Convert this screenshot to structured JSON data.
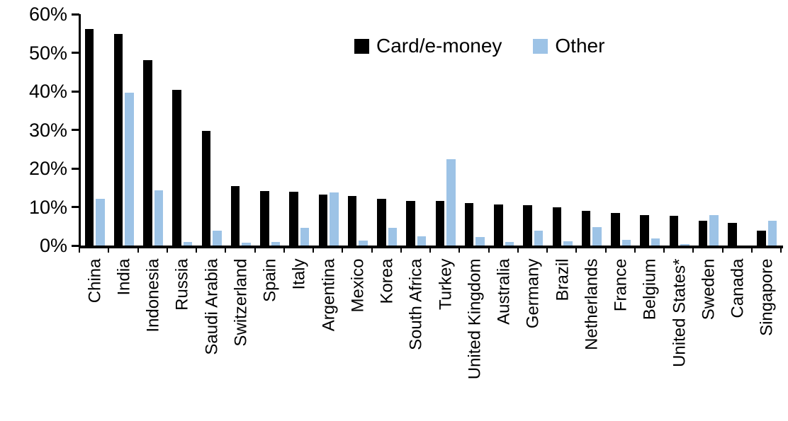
{
  "chart_data": {
    "type": "bar",
    "title": "",
    "xlabel": "",
    "ylabel": "",
    "ylim": [
      0,
      60
    ],
    "y_tick_labels": [
      "0%",
      "10%",
      "20%",
      "30%",
      "40%",
      "50%",
      "60%"
    ],
    "grid": false,
    "legend_position": "top-center",
    "categories": [
      "China",
      "India",
      "Indonesia",
      "Russia",
      "Saudi Arabia",
      "Switzerland",
      "Spain",
      "Italy",
      "Argentina",
      "Mexico",
      "Korea",
      "South Africa",
      "Turkey",
      "United Kingdom",
      "Australia",
      "Germany",
      "Brazil",
      "Netherlands",
      "France",
      "Belgium",
      "United States*",
      "Sweden",
      "Canada",
      "Singapore"
    ],
    "series": [
      {
        "name": "Card/e-money",
        "color": "#000000",
        "values": [
          56.2,
          54.9,
          48.1,
          40.3,
          29.7,
          15.5,
          14.1,
          14.0,
          13.2,
          12.8,
          12.1,
          11.6,
          11.5,
          11.0,
          10.7,
          10.5,
          9.9,
          9.0,
          8.5,
          7.9,
          7.7,
          6.4,
          5.9,
          3.9
        ],
        "interactable": "false"
      },
      {
        "name": "Other",
        "color": "#9DC3E6",
        "values": [
          12.2,
          39.7,
          14.4,
          0.9,
          3.8,
          0.8,
          1.0,
          4.5,
          13.7,
          1.3,
          4.5,
          2.3,
          22.4,
          2.2,
          1.0,
          3.9,
          1.1,
          4.8,
          1.4,
          1.9,
          0.3,
          7.9,
          0.0,
          6.5
        ]
      }
    ]
  }
}
